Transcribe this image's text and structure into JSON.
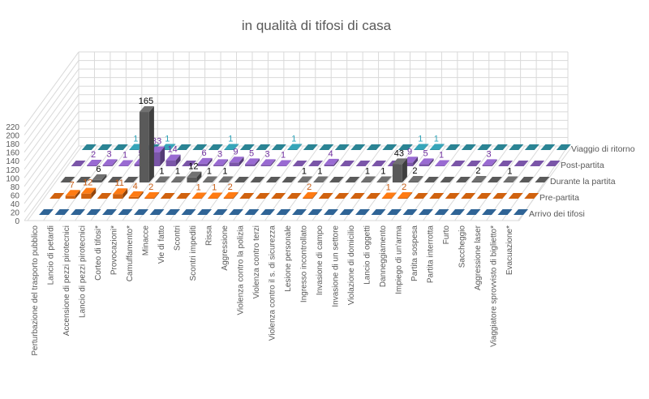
{
  "chart_data": {
    "type": "bar",
    "subtype": "3d-column",
    "title": "in qualità di tifosi di casa",
    "ylim": [
      0,
      220
    ],
    "yticks": [
      0,
      20,
      40,
      60,
      80,
      100,
      120,
      140,
      160,
      180,
      200,
      220
    ],
    "grid": true,
    "legend": "right (series labels along the depth axis)",
    "categories": [
      "Perturbazione del trasporto pubblico",
      "Lancio di petardi",
      "Accensione di pezzi pirotecnici",
      "Lancio di pezzi pirotecnici",
      "Corteo di tifosi*",
      "Provocazioni*",
      "Camuffamento*",
      "Minacce",
      "Vie di fatto",
      "Scontri",
      "Scontri impediti",
      "Rissa",
      "Aggressione",
      "Violenza contro la polizia",
      "Violenza contro terzi",
      "Violenza contro il s. di sicurezza",
      "Lesione personale",
      "Ingresso incontrollato",
      "Invasione di campo",
      "Invasione di un settore",
      "Violazione di domicilio",
      "Lancio di oggetti",
      "Danneggiamento",
      "Impiego di un'arma",
      "Partita sospesa",
      "Partita interrotta",
      "Furto",
      "Saccheggio",
      "Aggressione laser",
      "Viaggiatore sprovvisto di biglietto*",
      "Evacuazione*"
    ],
    "series": [
      {
        "name": "Arrivo dei tifosi",
        "color": "#2f6496",
        "label_color": "#2f6496",
        "values": [
          0,
          0,
          0,
          0,
          0,
          0,
          0,
          0,
          0,
          0,
          0,
          0,
          0,
          0,
          0,
          0,
          0,
          0,
          0,
          0,
          0,
          0,
          0,
          0,
          0,
          0,
          0,
          0,
          0,
          0,
          0
        ]
      },
      {
        "name": "Pre-partita",
        "color": "#d0620f",
        "label_color": "#c55a11",
        "values": [
          0,
          7,
          12,
          0,
          11,
          4,
          2,
          0,
          0,
          1,
          1,
          2,
          0,
          0,
          0,
          0,
          2,
          0,
          0,
          0,
          0,
          1,
          2,
          0,
          0,
          0,
          0,
          0,
          0,
          0,
          0
        ]
      },
      {
        "name": "Durante la partita",
        "color": "#5a5a5a",
        "label_color": "#000000",
        "values": [
          0,
          0,
          6,
          0,
          0,
          165,
          1,
          1,
          12,
          1,
          1,
          0,
          0,
          0,
          0,
          1,
          1,
          0,
          0,
          1,
          1,
          43,
          2,
          0,
          0,
          0,
          2,
          0,
          1,
          0,
          0
        ]
      },
      {
        "name": "Post-partita",
        "color": "#7a55a8",
        "label_color": "#7030a0",
        "values": [
          0,
          2,
          3,
          1,
          5,
          33,
          14,
          0,
          6,
          3,
          9,
          5,
          3,
          1,
          0,
          0,
          4,
          0,
          0,
          0,
          0,
          9,
          5,
          1,
          0,
          0,
          3,
          0,
          0,
          0,
          0
        ]
      },
      {
        "name": "Viaggio di ritorno",
        "color": "#2b8494",
        "label_color": "#2ea3b8",
        "values": [
          0,
          0,
          0,
          1,
          0,
          1,
          0,
          0,
          0,
          1,
          0,
          0,
          0,
          1,
          0,
          0,
          0,
          0,
          0,
          0,
          0,
          1,
          1,
          0,
          0,
          0,
          0,
          0,
          0,
          0,
          0
        ]
      }
    ]
  }
}
